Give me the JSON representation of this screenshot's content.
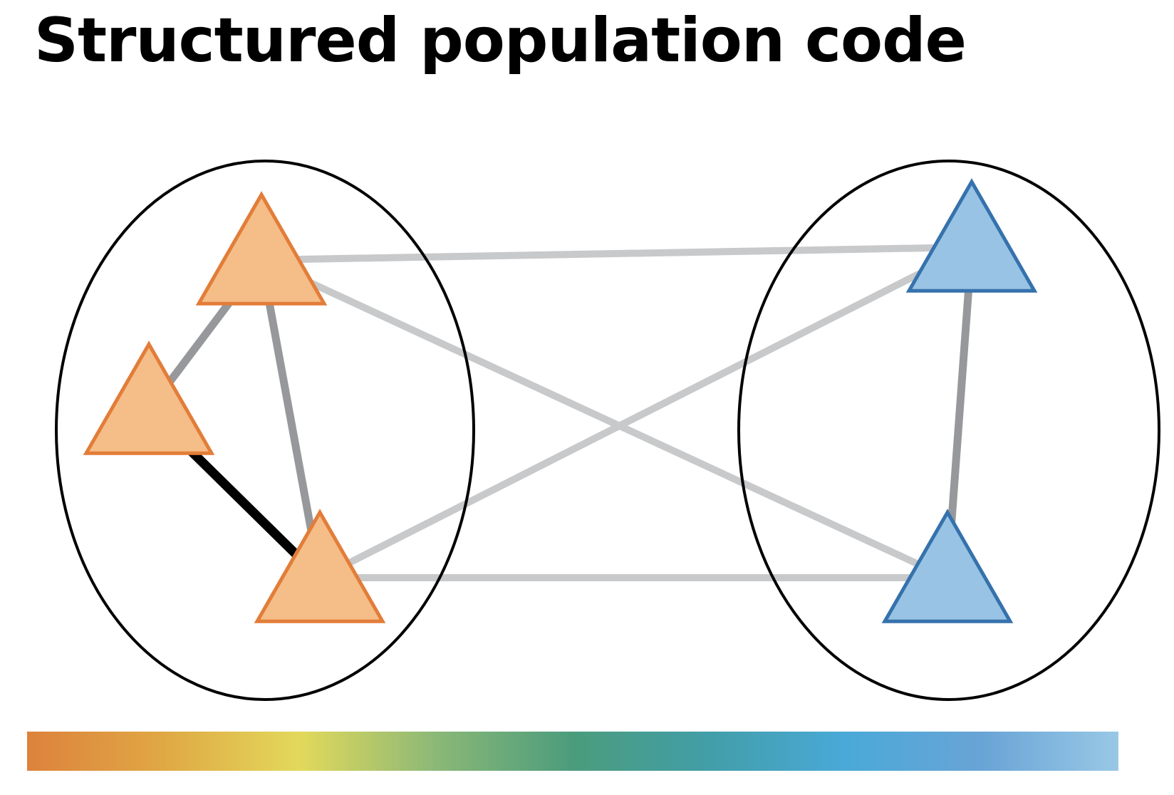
{
  "title": "Structured population code",
  "colors": {
    "orange_fill": "#f5bd87",
    "orange_stroke": "#e27d39",
    "blue_fill": "#99c3e4",
    "blue_stroke": "#3572ad",
    "edge_light": "#c8c9cb",
    "edge_medium": "#97989b",
    "edge_strong": "#000000",
    "group_outline": "#000000"
  },
  "groups": [
    {
      "id": "group-a",
      "nodes": [
        "a1",
        "a2",
        "a3"
      ]
    },
    {
      "id": "group-b",
      "nodes": [
        "b1",
        "b2"
      ]
    }
  ],
  "nodes": [
    {
      "id": "a1",
      "group": "group-a",
      "color": "orange"
    },
    {
      "id": "a2",
      "group": "group-a",
      "color": "orange"
    },
    {
      "id": "a3",
      "group": "group-a",
      "color": "orange"
    },
    {
      "id": "b1",
      "group": "group-b",
      "color": "blue"
    },
    {
      "id": "b2",
      "group": "group-b",
      "color": "blue"
    }
  ],
  "edges": [
    {
      "from": "a1",
      "to": "b1",
      "strength": "weak"
    },
    {
      "from": "a1",
      "to": "b2",
      "strength": "weak"
    },
    {
      "from": "a3",
      "to": "b1",
      "strength": "weak"
    },
    {
      "from": "a3",
      "to": "b2",
      "strength": "weak"
    },
    {
      "from": "a1",
      "to": "a2",
      "strength": "medium"
    },
    {
      "from": "a1",
      "to": "a3",
      "strength": "medium"
    },
    {
      "from": "b1",
      "to": "b2",
      "strength": "medium"
    },
    {
      "from": "a2",
      "to": "a3",
      "strength": "strong"
    }
  ],
  "colorbar": {
    "stops": [
      "#dd823c",
      "#e0a844",
      "#e2d95b",
      "#8bb877",
      "#4b9c7c",
      "#429ea8",
      "#4aa9d8",
      "#69a4d6",
      "#99c8e6"
    ]
  }
}
